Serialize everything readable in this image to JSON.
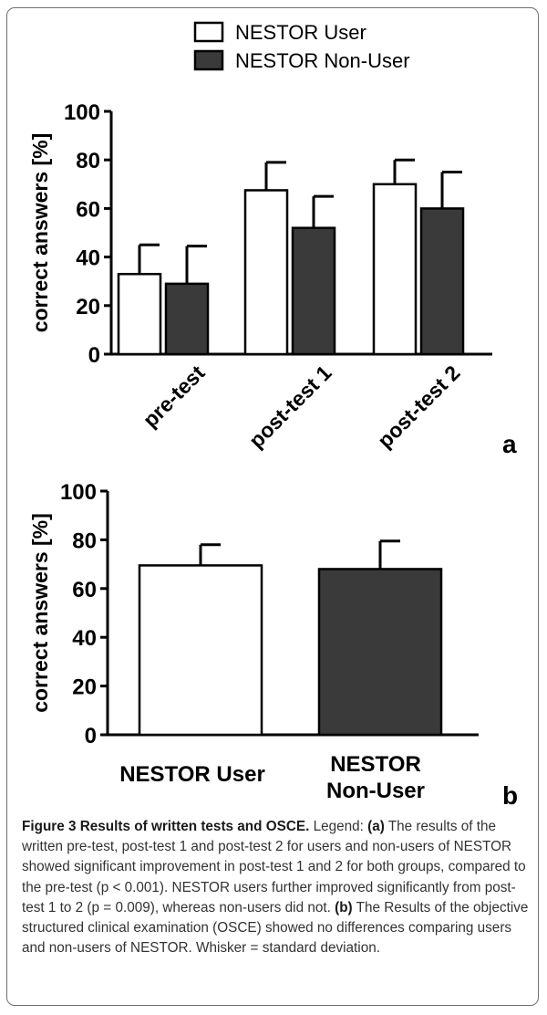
{
  "chart_data": [
    {
      "panel": "a",
      "type": "bar",
      "ylabel": "correct answers [%]",
      "ylim": [
        0,
        100
      ],
      "yticks": [
        "0",
        "20",
        "40",
        "60",
        "80",
        "100"
      ],
      "categories": [
        "pre-test",
        "post-test 1",
        "post-test 2"
      ],
      "series": [
        {
          "name": "NESTOR User",
          "color": "#ffffff",
          "values": [
            33,
            67.5,
            70
          ],
          "errors": [
            12,
            11.5,
            10
          ]
        },
        {
          "name": "NESTOR Non-User",
          "color": "#3a3a3a",
          "values": [
            29,
            52,
            60
          ],
          "errors": [
            15.5,
            13,
            15
          ]
        }
      ],
      "legend_position": "top",
      "panel_label": "a"
    },
    {
      "panel": "b",
      "type": "bar",
      "ylabel": "correct answers [%]",
      "ylim": [
        0,
        100
      ],
      "yticks": [
        "0",
        "20",
        "40",
        "60",
        "80",
        "100"
      ],
      "categories": [
        "NESTOR User",
        "NESTOR Non-User"
      ],
      "category_lines": [
        [
          "NESTOR User"
        ],
        [
          "NESTOR",
          "Non-User"
        ]
      ],
      "values": [
        69.5,
        68
      ],
      "errors": [
        8.5,
        11.5
      ],
      "colors": [
        "#ffffff",
        "#3a3a3a"
      ],
      "panel_label": "b"
    }
  ],
  "caption": {
    "title": "Figure 3 Results of written tests and OSCE.",
    "legend_word": "Legend:",
    "a_label": "(a)",
    "a_text": "The results of the written pre-test, post-test 1 and post-test 2 for users and non-users of NESTOR showed significant improvement in post-test 1 and 2 for both groups, compared to the pre-test (p < 0.001). NESTOR users further improved significantly from post-test 1 to 2 (p = 0.009), whereas non-users did not.",
    "b_label": "(b)",
    "b_text": "The Results of the objective structured clinical examination (OSCE) showed no differences comparing users and non-users of NESTOR. Whisker = standard deviation."
  }
}
